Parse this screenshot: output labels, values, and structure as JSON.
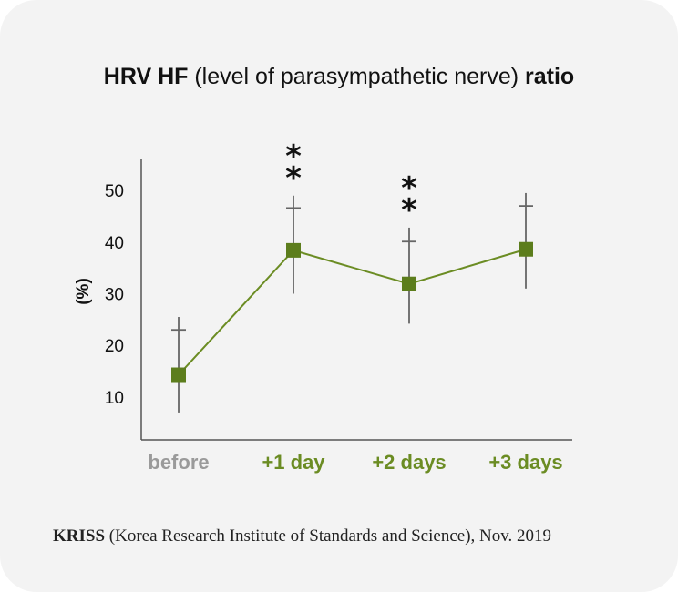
{
  "header": {
    "title_bold": "HRV HF",
    "title_normal": " (level of parasympathetic nerve) ",
    "title_bold_end": "ratio"
  },
  "chart_data": {
    "type": "line",
    "title": "HRV HF (level of parasympathetic nerve) ratio",
    "xlabel": "",
    "ylabel": "(%)",
    "ylim": [
      3,
      58
    ],
    "yticks": [
      10,
      20,
      30,
      40,
      50
    ],
    "categories": [
      "before",
      "+1 day",
      "+2 days",
      "+3 days"
    ],
    "category_colors": [
      "#9a9a9a",
      "#6b8c23",
      "#6b8c23",
      "#6b8c23"
    ],
    "series": [
      {
        "name": "HRV HF ratio",
        "values": [
          14.3,
          38.4,
          31.9,
          38.6
        ],
        "error_bar_ends": [
          [
            7,
            25.5
          ],
          [
            30,
            49
          ],
          [
            24.2,
            42.8
          ],
          [
            31,
            49.5
          ]
        ],
        "upper_ticks": [
          23,
          46.6,
          40.1,
          47
        ]
      }
    ],
    "significance": [
      "",
      "**",
      "**",
      ""
    ],
    "colors": {
      "line": "#6b8c23",
      "marker": "#5c7d1c",
      "error_bar": "#666666",
      "axis": "#555555",
      "significance": "#111111"
    }
  },
  "footer": {
    "org": "KRISS",
    "text": " (Korea Research Institute of Standards and Science), Nov. 2019"
  }
}
